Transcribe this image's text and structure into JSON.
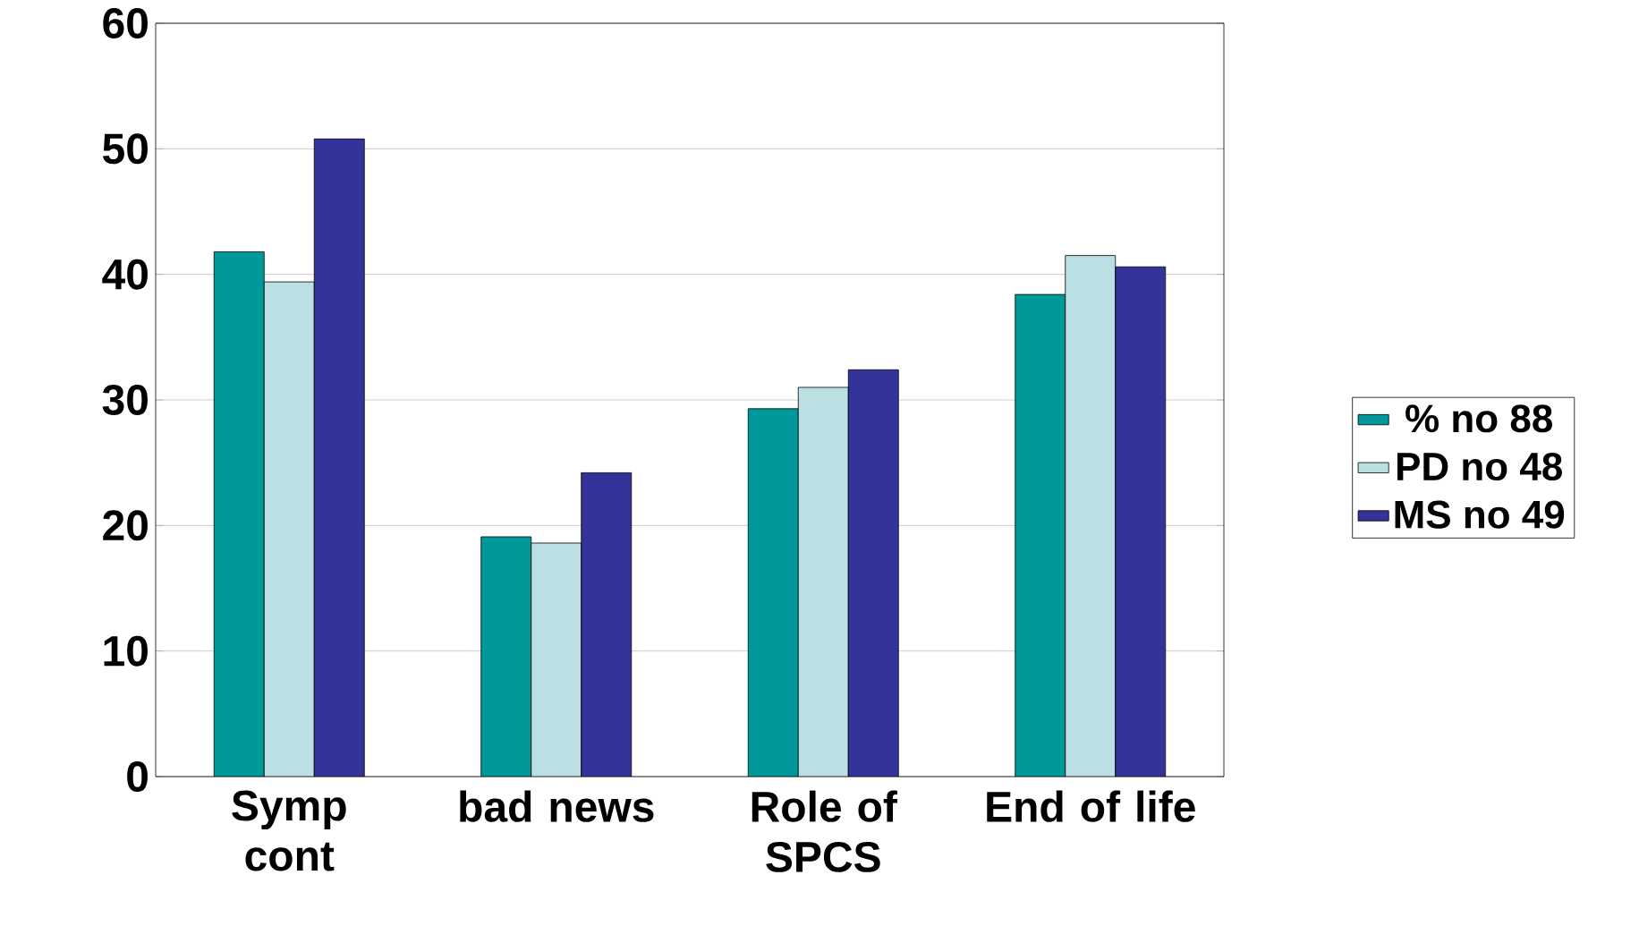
{
  "chart_data": {
    "type": "bar",
    "categories": [
      "Symp cont",
      "bad news",
      "Role of SPCS",
      "End of life"
    ],
    "series": [
      {
        "name": "% no 88",
        "color": "#009999",
        "values": [
          41.8,
          19.1,
          29.3,
          38.4
        ]
      },
      {
        "name": "PD no 48",
        "color": "#bbe0e3",
        "values": [
          39.4,
          18.6,
          31.0,
          41.5
        ]
      },
      {
        "name": "MS no 49",
        "color": "#333399",
        "values": [
          50.8,
          24.2,
          32.4,
          40.6
        ]
      }
    ],
    "ylim": [
      0,
      60
    ],
    "yticks": [
      0,
      10,
      20,
      30,
      40,
      50,
      60
    ],
    "grid": "y",
    "legend": "right"
  }
}
